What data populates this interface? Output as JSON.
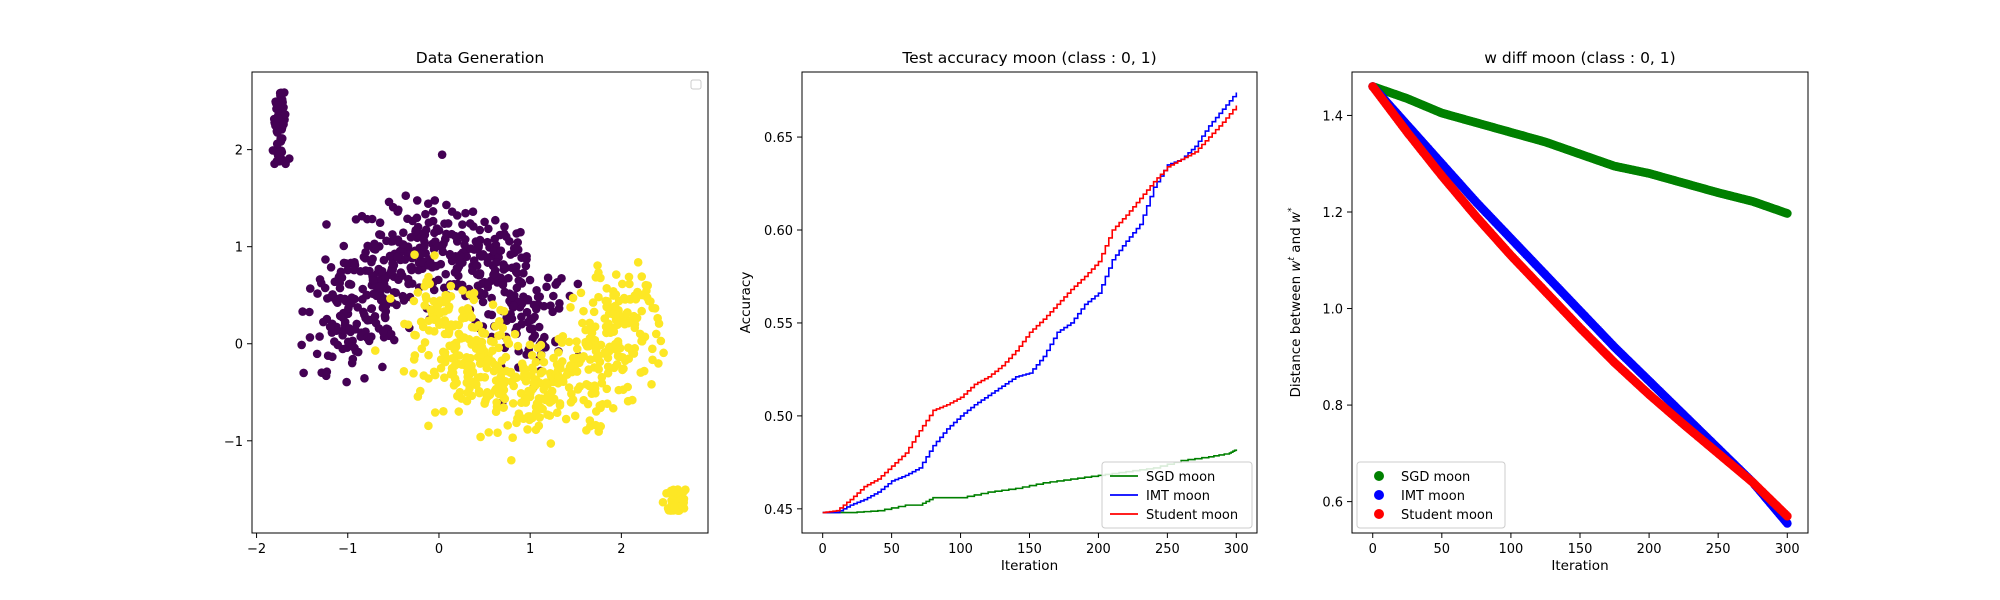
{
  "chart_data": [
    {
      "type": "scatter",
      "title": "Data Generation",
      "xlabel": "",
      "ylabel": "",
      "xlim": [
        -2.05,
        2.95
      ],
      "ylim": [
        -1.95,
        2.8
      ],
      "xticks": [
        -2,
        -1,
        0,
        1,
        2
      ],
      "yticks": [
        -1,
        0,
        1,
        2
      ],
      "tick_labels_x": [
        "−2",
        "−1",
        "0",
        "1",
        "2"
      ],
      "tick_labels_y": [
        "−1",
        "0",
        "1",
        "2"
      ],
      "legend": "top-right (empty)",
      "class_colors": [
        "#440154",
        "#fde725"
      ],
      "clusters": [
        {
          "class": 0,
          "shape": "upper-moon",
          "cx": 0.0,
          "cy": 0.0,
          "radius": 1.0,
          "angle_range_deg": [
            0,
            180
          ],
          "noise": 0.25,
          "count": 520
        },
        {
          "class": 1,
          "shape": "lower-moon",
          "cx": 1.0,
          "cy": 0.5,
          "radius": 1.0,
          "angle_range_deg": [
            180,
            360
          ],
          "noise": 0.25,
          "count": 520
        },
        {
          "class": 0,
          "shape": "blob",
          "x_range": [
            -1.85,
            -1.65
          ],
          "y_range": [
            1.85,
            2.6
          ],
          "count": 70
        },
        {
          "class": 1,
          "shape": "blob",
          "x_range": [
            2.45,
            2.75
          ],
          "y_range": [
            -1.72,
            -1.5
          ],
          "count": 60
        }
      ]
    },
    {
      "type": "line",
      "title": "Test accuracy moon (class : 0, 1)",
      "xlabel": "Iteration",
      "ylabel": "Accuracy",
      "xlim": [
        -15,
        315
      ],
      "ylim": [
        0.437,
        0.685
      ],
      "xticks": [
        0,
        50,
        100,
        150,
        200,
        250,
        300
      ],
      "yticks": [
        0.45,
        0.5,
        0.55,
        0.6,
        0.65
      ],
      "ytick_labels": [
        "0.45",
        "0.50",
        "0.55",
        "0.60",
        "0.65"
      ],
      "legend": "lower-right",
      "series": [
        {
          "name": "SGD moon",
          "color": "#008000",
          "x": [
            0,
            5,
            20,
            40,
            60,
            70,
            80,
            100,
            120,
            140,
            160,
            180,
            200,
            220,
            240,
            260,
            280,
            295,
            300
          ],
          "y": [
            0.448,
            0.448,
            0.448,
            0.449,
            0.452,
            0.452,
            0.456,
            0.456,
            0.459,
            0.461,
            0.464,
            0.466,
            0.468,
            0.47,
            0.472,
            0.476,
            0.478,
            0.48,
            0.482
          ]
        },
        {
          "name": "IMT moon",
          "color": "#0000ff",
          "x": [
            0,
            10,
            20,
            30,
            40,
            50,
            60,
            70,
            80,
            90,
            100,
            110,
            120,
            130,
            140,
            150,
            160,
            170,
            180,
            190,
            200,
            210,
            220,
            230,
            240,
            250,
            260,
            270,
            280,
            290,
            300
          ],
          "y": [
            0.448,
            0.448,
            0.452,
            0.455,
            0.459,
            0.465,
            0.468,
            0.472,
            0.484,
            0.493,
            0.5,
            0.506,
            0.511,
            0.516,
            0.521,
            0.523,
            0.532,
            0.545,
            0.55,
            0.56,
            0.566,
            0.584,
            0.594,
            0.603,
            0.623,
            0.635,
            0.638,
            0.645,
            0.656,
            0.665,
            0.674
          ]
        },
        {
          "name": "Student moon",
          "color": "#ff0000",
          "x": [
            0,
            10,
            20,
            30,
            40,
            50,
            60,
            70,
            80,
            90,
            100,
            110,
            120,
            130,
            140,
            150,
            160,
            170,
            180,
            190,
            200,
            210,
            220,
            230,
            240,
            250,
            260,
            270,
            280,
            290,
            300
          ],
          "y": [
            0.448,
            0.449,
            0.455,
            0.462,
            0.466,
            0.473,
            0.48,
            0.492,
            0.503,
            0.506,
            0.51,
            0.517,
            0.521,
            0.527,
            0.535,
            0.545,
            0.552,
            0.56,
            0.568,
            0.575,
            0.583,
            0.6,
            0.608,
            0.617,
            0.626,
            0.634,
            0.638,
            0.642,
            0.65,
            0.658,
            0.667
          ]
        }
      ]
    },
    {
      "type": "scatter",
      "title": "w diff moon (class : 0, 1)",
      "xlabel": "Iteration",
      "ylabel": "Distance between w^t and w^*",
      "ylabel_parts": [
        "Distance between ",
        "w",
        "t",
        " and ",
        "w",
        "*"
      ],
      "xlim": [
        -15,
        315
      ],
      "ylim": [
        0.535,
        1.49
      ],
      "xticks": [
        0,
        50,
        100,
        150,
        200,
        250,
        300
      ],
      "yticks": [
        0.6,
        0.8,
        1.0,
        1.2,
        1.4
      ],
      "ytick_labels": [
        "0.6",
        "0.8",
        "1.0",
        "1.2",
        "1.4"
      ],
      "legend": "lower-left",
      "series": [
        {
          "name": "SGD moon",
          "color": "#008000",
          "x": [
            0,
            25,
            50,
            75,
            100,
            125,
            150,
            175,
            200,
            225,
            250,
            275,
            300
          ],
          "y": [
            1.46,
            1.435,
            1.405,
            1.385,
            1.365,
            1.345,
            1.32,
            1.295,
            1.28,
            1.26,
            1.24,
            1.222,
            1.197
          ]
        },
        {
          "name": "IMT moon",
          "color": "#0000ff",
          "x": [
            0,
            25,
            50,
            75,
            100,
            125,
            150,
            175,
            200,
            225,
            250,
            275,
            300
          ],
          "y": [
            1.46,
            1.38,
            1.3,
            1.22,
            1.145,
            1.07,
            0.995,
            0.92,
            0.85,
            0.78,
            0.71,
            0.64,
            0.555
          ]
        },
        {
          "name": "Student moon",
          "color": "#ff0000",
          "x": [
            0,
            25,
            50,
            75,
            100,
            125,
            150,
            175,
            200,
            225,
            250,
            275,
            300
          ],
          "y": [
            1.46,
            1.365,
            1.275,
            1.19,
            1.11,
            1.035,
            0.96,
            0.888,
            0.822,
            0.76,
            0.7,
            0.64,
            0.57
          ]
        }
      ]
    }
  ]
}
